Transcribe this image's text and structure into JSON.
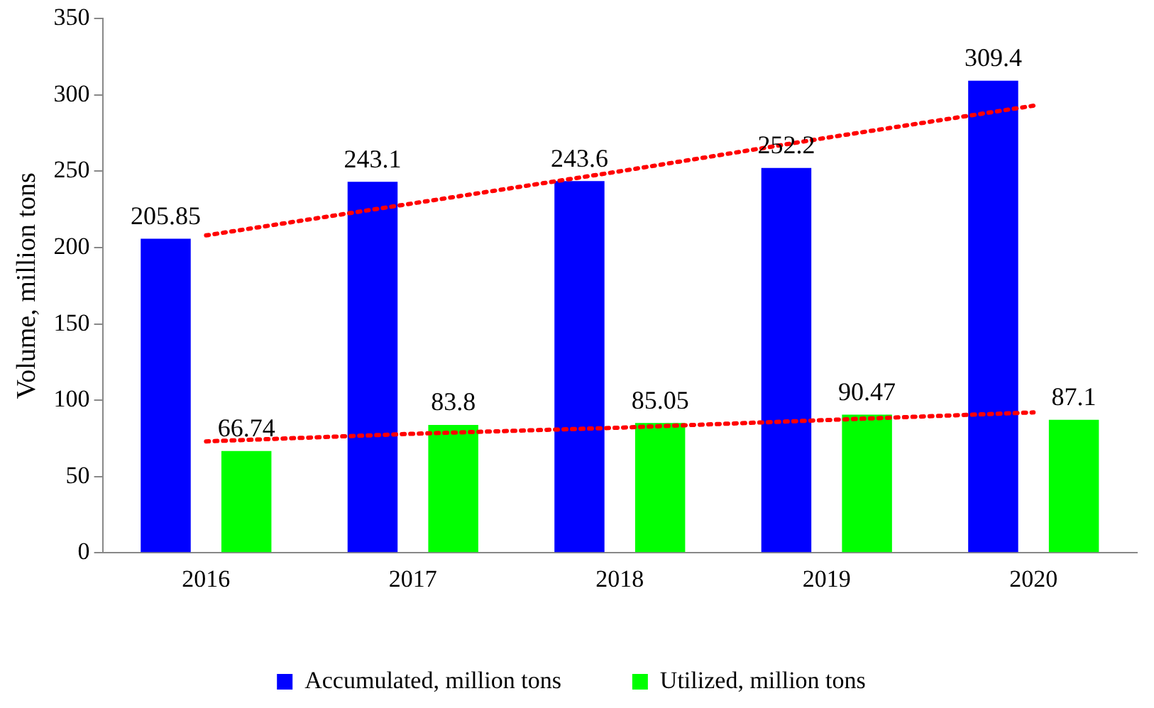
{
  "chart_data": {
    "type": "bar",
    "ylabel": "Volume, million tons",
    "categories": [
      "2016",
      "2017",
      "2018",
      "2019",
      "2020"
    ],
    "series": [
      {
        "name": "Accumulated, million tons",
        "color": "#0000ff",
        "values": [
          205.85,
          243.1,
          243.6,
          252.2,
          309.4
        ],
        "value_labels": [
          "205.85",
          "243.1",
          "243.6",
          "252.2",
          "309.4"
        ]
      },
      {
        "name": "Utilized, million tons",
        "color": "#00ff00",
        "values": [
          66.74,
          83.8,
          85.05,
          90.47,
          87.1
        ],
        "value_labels": [
          "66.74",
          "83.8",
          "85.05",
          "90.47",
          "87.1"
        ]
      },
      {
        "type": "line",
        "color": "#ff0000",
        "values": [
          208,
          229,
          250,
          272,
          293
        ],
        "line_style": "dotted",
        "marker": "none"
      },
      {
        "type": "line",
        "color": "#ff0000",
        "values": [
          73,
          78,
          82,
          87,
          92
        ],
        "line_style": "dotted",
        "marker": "none"
      }
    ],
    "ylim": [
      0,
      350
    ],
    "yticks": [
      0,
      50,
      100,
      150,
      200,
      250,
      300,
      350
    ],
    "grid": false,
    "legend": "bottom"
  }
}
